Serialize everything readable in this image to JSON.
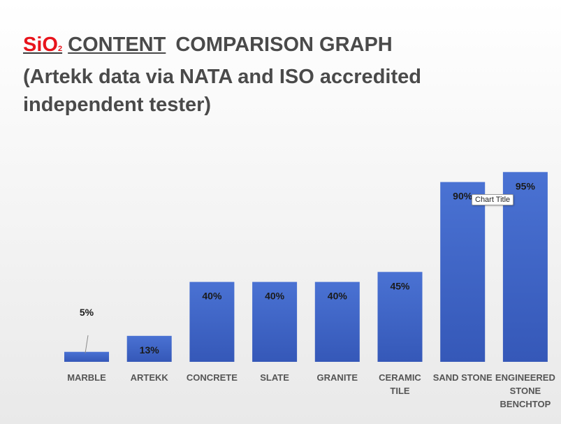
{
  "header": {
    "sio2_main": "SiO",
    "sio2_sub": "2",
    "content_word": "CONTENT",
    "title_rest": "COMPARISON GRAPH",
    "subtitle": "(Artekk data via NATA and ISO accredited independent tester)"
  },
  "tooltip": {
    "text": "Chart Title"
  },
  "colors": {
    "bar_top": "#4a72d3",
    "bar_bottom": "#3558b8",
    "accent_red": "#e8141c"
  },
  "chart_data": {
    "type": "bar",
    "categories": [
      [
        "MARBLE"
      ],
      [
        "ARTEKK"
      ],
      [
        "CONCRETE"
      ],
      [
        "SLATE"
      ],
      [
        "GRANITE"
      ],
      [
        "CERAMIC",
        "TILE"
      ],
      [
        "SAND STONE"
      ],
      [
        "ENGINEERED",
        "STONE",
        "BENCHTOP"
      ]
    ],
    "values": [
      5,
      13,
      40,
      40,
      40,
      45,
      90,
      95
    ],
    "data_labels": [
      "5%",
      "13%",
      "40%",
      "40%",
      "40%",
      "45%",
      "90%",
      "95%"
    ],
    "ylim": [
      0,
      100
    ],
    "grid": false,
    "legend": "none"
  }
}
